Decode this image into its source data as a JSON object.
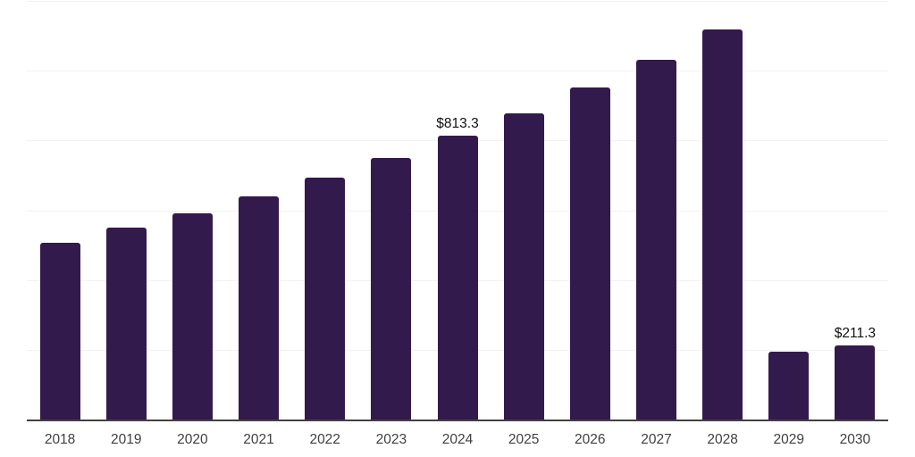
{
  "chart_data": {
    "type": "bar",
    "title": "",
    "xlabel": "",
    "ylabel": "",
    "categories": [
      "2018",
      "2019",
      "2020",
      "2021",
      "2022",
      "2023",
      "2024",
      "2025",
      "2026",
      "2027",
      "2028",
      "2029",
      "2030"
    ],
    "values": [
      507,
      551,
      592,
      640,
      694,
      750,
      813.3,
      877,
      951,
      1030,
      1117,
      194,
      211.3
    ],
    "value_labels": [
      "",
      "",
      "",
      "",
      "",
      "",
      "$813.3",
      "",
      "",
      "",
      "",
      "",
      "$211.3"
    ],
    "ylim": [
      0,
      1200
    ],
    "y_gridline_interval": 200,
    "y_tick_labels_visible": false,
    "grid": "horizontal",
    "legend": "none"
  },
  "colors": {
    "bar": "#331a4d",
    "gridline": "#f2f2f2",
    "axis_line": "#424242",
    "tick_label": "#404040",
    "data_label": "#111111",
    "background": "#ffffff"
  }
}
